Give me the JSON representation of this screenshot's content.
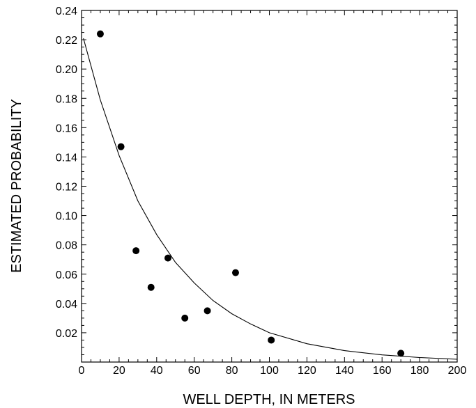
{
  "chart_data": {
    "type": "scatter",
    "xlabel": "WELL DEPTH, IN METERS",
    "ylabel": "ESTIMATED PROBABILITY",
    "xlim": [
      0,
      200
    ],
    "ylim": [
      0,
      0.24
    ],
    "xticks": [
      0,
      20,
      40,
      60,
      80,
      100,
      120,
      140,
      160,
      180,
      200
    ],
    "xtick_labels": [
      "0",
      "20",
      "40",
      "60",
      "80",
      "100",
      "120",
      "140",
      "160",
      "180",
      "200"
    ],
    "yticks": [
      0.02,
      0.04,
      0.06,
      0.08,
      0.1,
      0.12,
      0.14,
      0.16,
      0.18,
      0.2,
      0.22,
      0.24
    ],
    "ytick_labels": [
      "0.02",
      "0.04",
      "0.06",
      "0.08",
      "0.10",
      "0.12",
      "0.14",
      "0.16",
      "0.18",
      "0.20",
      "0.22",
      "0.24"
    ],
    "grid": false,
    "series": [
      {
        "type": "scatter",
        "x": [
          10,
          21,
          29,
          37,
          46,
          55,
          67,
          82,
          101,
          170
        ],
        "y": [
          0.224,
          0.147,
          0.076,
          0.051,
          0.071,
          0.03,
          0.035,
          0.061,
          0.015,
          0.006
        ]
      },
      {
        "type": "line",
        "x": [
          1,
          10,
          20,
          30,
          40,
          50,
          60,
          70,
          80,
          90,
          100,
          120,
          140,
          160,
          180,
          200
        ],
        "y": [
          0.221,
          0.179,
          0.141,
          0.11,
          0.087,
          0.068,
          0.054,
          0.042,
          0.033,
          0.026,
          0.02,
          0.0125,
          0.0078,
          0.0049,
          0.0031,
          0.0019
        ]
      }
    ]
  }
}
